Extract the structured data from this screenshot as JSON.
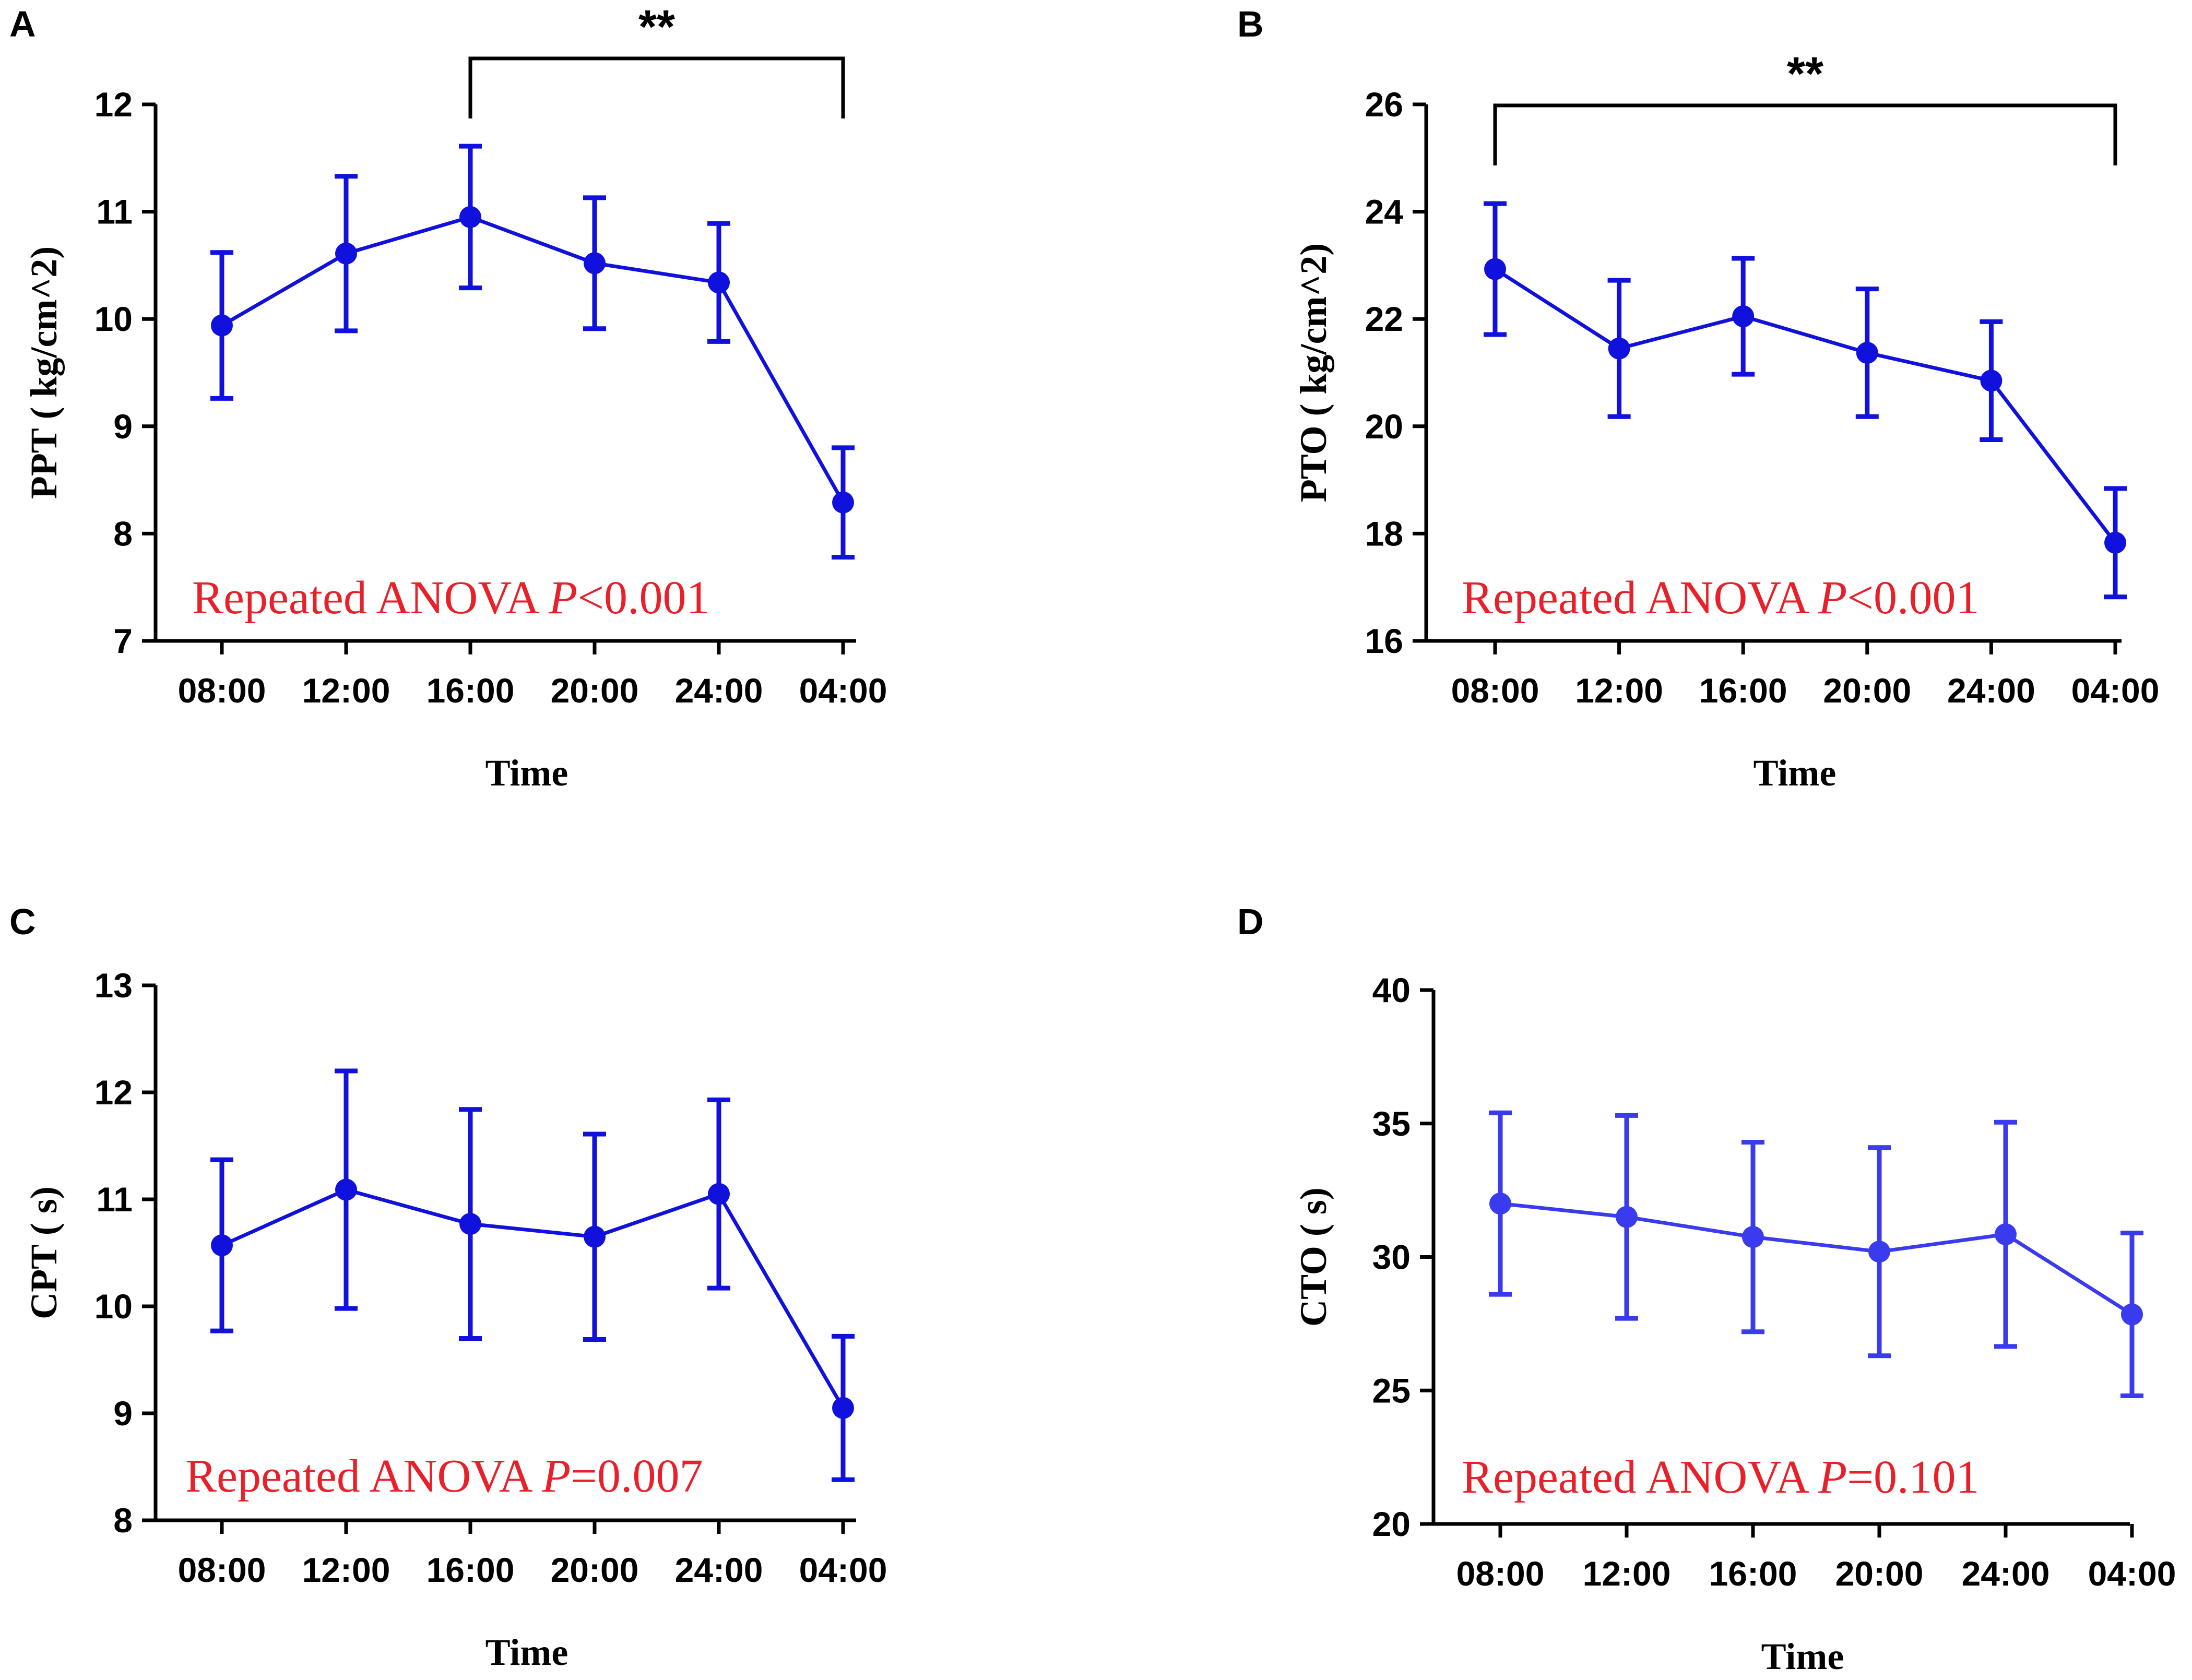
{
  "chart_data": [
    {
      "panel": "A",
      "type": "line",
      "title": "",
      "xlabel": "Time",
      "ylabel": "PPT ( kg/cm^2)",
      "categories": [
        "08:00",
        "12:00",
        "16:00",
        "20:00",
        "24:00",
        "04:00"
      ],
      "series": [
        {
          "name": "PPT",
          "values": [
            9.94,
            10.61,
            10.95,
            10.52,
            10.34,
            8.29
          ],
          "errors": [
            0.68,
            0.72,
            0.66,
            0.61,
            0.55,
            0.51
          ]
        }
      ],
      "ylim": [
        7,
        12
      ],
      "yticks": [
        7,
        8,
        9,
        10,
        11,
        12
      ],
      "grid": false,
      "color": "#1111dd",
      "annotation": {
        "text_prefix": "Repeated ANOVA ",
        "p_symbol": "P",
        "p_value": "<0.001",
        "color": "#e8202a"
      },
      "significance": {
        "from_index": 2,
        "to_index": 5,
        "label": "**"
      }
    },
    {
      "panel": "B",
      "type": "line",
      "title": "",
      "xlabel": "Time",
      "ylabel": "PTO ( kg/cm^2)",
      "categories": [
        "08:00",
        "12:00",
        "16:00",
        "20:00",
        "24:00",
        "04:00"
      ],
      "series": [
        {
          "name": "PTO",
          "values": [
            22.93,
            21.45,
            22.05,
            21.37,
            20.85,
            17.83
          ],
          "errors": [
            1.22,
            1.27,
            1.08,
            1.19,
            1.1,
            1.01
          ]
        }
      ],
      "ylim": [
        16,
        26
      ],
      "yticks": [
        16,
        18,
        20,
        22,
        24,
        26
      ],
      "grid": false,
      "color": "#1111dd",
      "annotation": {
        "text_prefix": "Repeated ANOVA ",
        "p_symbol": "P",
        "p_value": "<0.001",
        "color": "#e8202a"
      },
      "significance": {
        "from_index": 0,
        "to_index": 5,
        "label": "**"
      }
    },
    {
      "panel": "C",
      "type": "line",
      "title": "",
      "xlabel": "Time",
      "ylabel": "CPT ( s)",
      "categories": [
        "08:00",
        "12:00",
        "16:00",
        "20:00",
        "24:00",
        "04:00"
      ],
      "series": [
        {
          "name": "CPT",
          "values": [
            10.57,
            11.09,
            10.77,
            10.65,
            11.05,
            9.05
          ],
          "errors": [
            0.8,
            1.11,
            1.07,
            0.96,
            0.88,
            0.67
          ]
        }
      ],
      "ylim": [
        8,
        13
      ],
      "yticks": [
        8,
        9,
        10,
        11,
        12,
        13
      ],
      "grid": false,
      "color": "#1111dd",
      "annotation": {
        "text_prefix": "Repeated ANOVA ",
        "p_symbol": "P",
        "p_value": "=0.007",
        "color": "#e8202a"
      },
      "significance": null
    },
    {
      "panel": "D",
      "type": "line",
      "title": "",
      "xlabel": "Time",
      "ylabel": "CTO ( s)",
      "categories": [
        "08:00",
        "12:00",
        "16:00",
        "20:00",
        "24:00",
        "04:00"
      ],
      "series": [
        {
          "name": "CTO",
          "values": [
            32.0,
            31.5,
            30.75,
            30.2,
            30.85,
            27.85
          ],
          "errors": [
            3.4,
            3.8,
            3.55,
            3.9,
            4.2,
            3.05
          ]
        }
      ],
      "ylim": [
        20,
        40
      ],
      "yticks": [
        20,
        25,
        30,
        35,
        40
      ],
      "grid": false,
      "color": "#3a3aee",
      "annotation": {
        "text_prefix": "Repeated ANOVA ",
        "p_symbol": "P",
        "p_value": "=0.101",
        "color": "#e8202a"
      },
      "significance": null
    }
  ]
}
